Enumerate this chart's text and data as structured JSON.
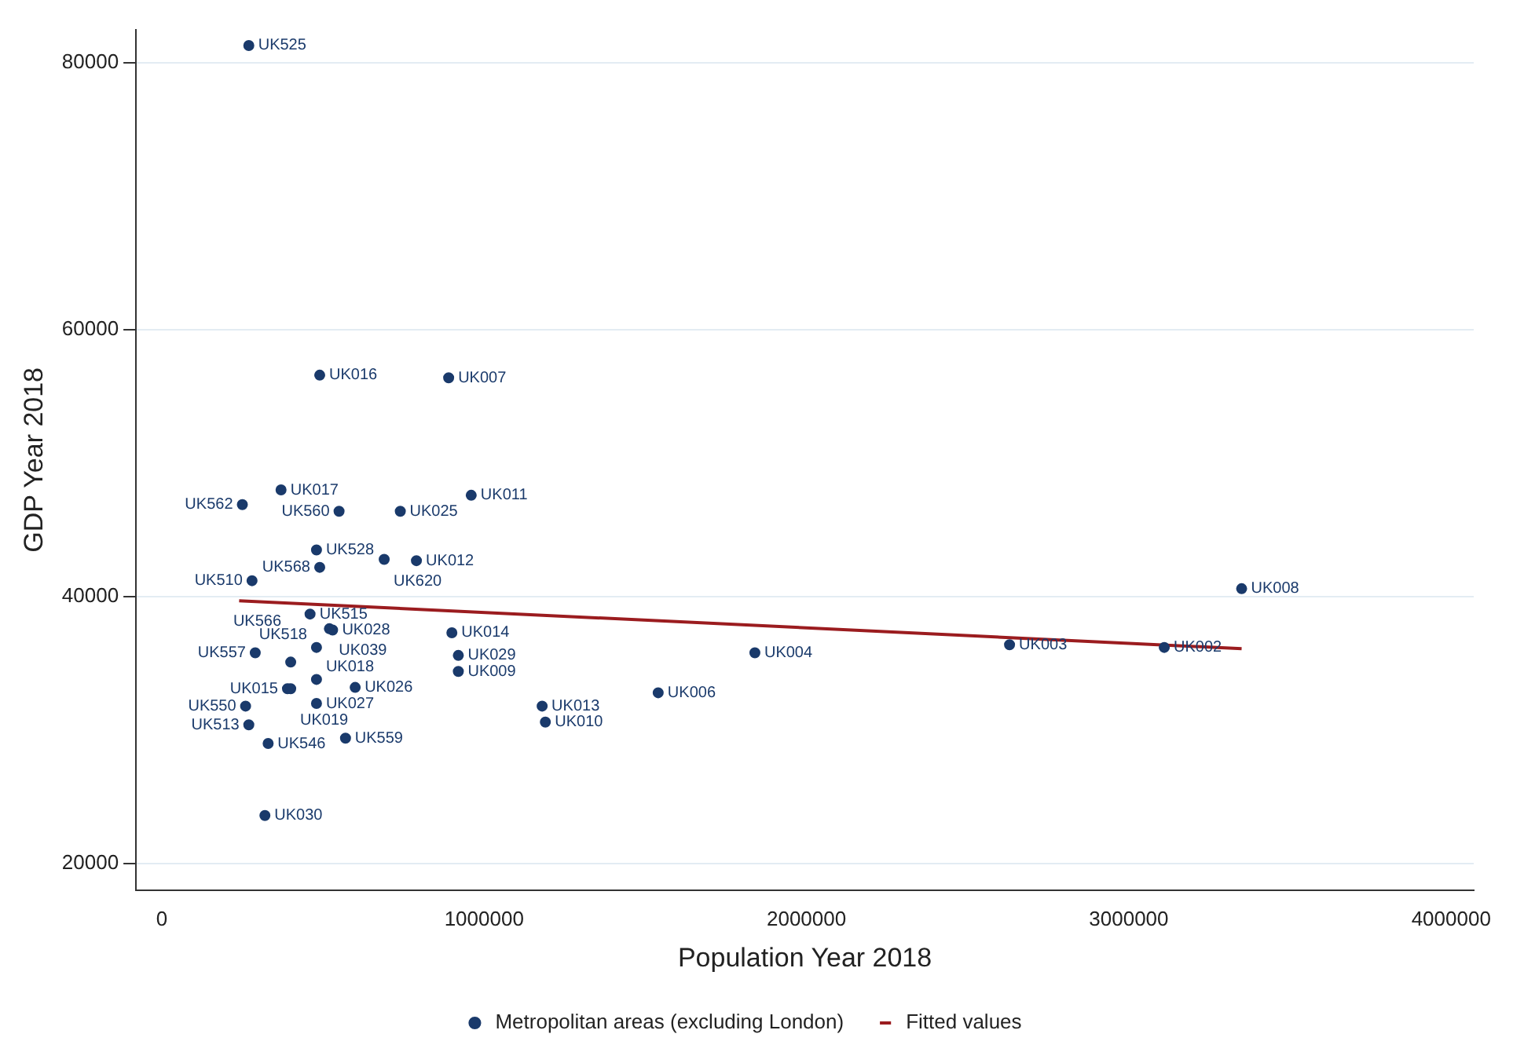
{
  "chart_data": {
    "type": "scatter",
    "xlabel": "Population Year 2018",
    "ylabel": "GDP Year 2018",
    "xlim": [
      -80000,
      4070000
    ],
    "xticks": [
      0,
      1000000,
      2000000,
      3000000,
      4000000
    ],
    "ylim": [
      18000,
      82500
    ],
    "yticks": [
      20000,
      40000,
      60000,
      80000
    ],
    "grid": "y",
    "legend": "bottom",
    "marker": "circle",
    "series": [
      {
        "name": "Metropolitan areas (excluding London)",
        "color": "#1a3a6b",
        "x": [
          270000,
          490000,
          890000,
          370000,
          250000,
          550000,
          740000,
          960000,
          480000,
          490000,
          690000,
          790000,
          280000,
          3350000,
          460000,
          520000,
          530000,
          900000,
          290000,
          480000,
          400000,
          920000,
          920000,
          480000,
          390000,
          400000,
          600000,
          480000,
          260000,
          270000,
          330000,
          570000,
          320000,
          1180000,
          1190000,
          1540000,
          1840000,
          2630000,
          3110000
        ],
        "values": [
          81300,
          56600,
          56400,
          48000,
          46900,
          46400,
          46400,
          47600,
          43500,
          42200,
          42800,
          42700,
          41200,
          40600,
          38700,
          37600,
          37500,
          37300,
          35800,
          36200,
          35100,
          35600,
          34400,
          33800,
          33100,
          33100,
          33200,
          32000,
          31800,
          30400,
          29000,
          29400,
          23600,
          31800,
          30600,
          32800,
          35800,
          36400,
          36200
        ],
        "value_labels": [
          "UK525",
          "UK016",
          "UK007",
          "UK017",
          "UK562",
          "UK560",
          "UK025",
          "UK011",
          "UK528",
          "UK568",
          "UK620",
          "UK012",
          "UK510",
          "UK008",
          "UK515",
          "UK039",
          "UK028",
          "UK014",
          "UK557",
          "UK518",
          "UK566",
          "UK029",
          "UK009",
          "UK018",
          "UK015",
          "UK019",
          "UK026",
          "UK027",
          "UK550",
          "UK513",
          "UK546",
          "UK559",
          "UK030",
          "UK013",
          "UK010",
          "UK006",
          "UK004",
          "UK003",
          "UK002"
        ]
      },
      {
        "name": "Fitted values",
        "color": "#9b1c1f",
        "type": "line",
        "line_style": "solid",
        "marker": "none",
        "x": [
          240000,
          3350000
        ],
        "values": [
          39700,
          36100
        ]
      }
    ]
  }
}
